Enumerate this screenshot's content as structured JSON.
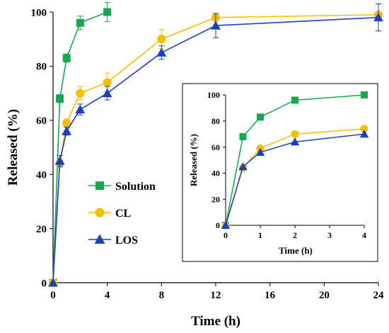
{
  "chart_data": [
    {
      "type": "line",
      "xlabel": "Time  (h)",
      "ylabel": "Released (%)",
      "xlim": [
        0,
        24
      ],
      "ylim": [
        0,
        100
      ],
      "xticks": [
        "0",
        "4",
        "8",
        "12",
        "16",
        "20",
        "24"
      ],
      "yticks": [
        "0",
        "20",
        "40",
        "60",
        "80",
        "100"
      ],
      "grid": false,
      "legend_position": "center-left",
      "series": [
        {
          "name": "Solution",
          "color": "#1aa550",
          "marker": "square",
          "x": [
            0,
            0.5,
            1,
            2,
            4
          ],
          "y": [
            0,
            68,
            83,
            96,
            100
          ],
          "err": [
            0,
            1.5,
            1.5,
            2.5,
            3.5
          ]
        },
        {
          "name": "CL",
          "color": "#f5bf00",
          "marker": "circle",
          "x": [
            0,
            0.5,
            1,
            2,
            4,
            8,
            12,
            24
          ],
          "y": [
            0,
            44,
            59,
            70,
            74,
            90,
            98,
            99
          ],
          "err": [
            0,
            1.5,
            1.5,
            2.5,
            3.5,
            3.5,
            1.5,
            1
          ]
        },
        {
          "name": "LOS",
          "color": "#1f3fbf",
          "marker": "triangle",
          "x": [
            0,
            0.5,
            1,
            2,
            4,
            8,
            12,
            24
          ],
          "y": [
            0,
            45,
            56,
            64,
            70,
            85,
            95,
            98
          ],
          "err": [
            0,
            2,
            1.5,
            2,
            2.5,
            2.5,
            4.5,
            5
          ]
        }
      ]
    },
    {
      "type": "line",
      "xlabel": "Time (h)",
      "ylabel": "Released (%)",
      "xlim": [
        0,
        4
      ],
      "ylim": [
        0,
        100
      ],
      "xticks": [
        "0",
        "1",
        "2",
        "3",
        "4"
      ],
      "yticks": [
        "0",
        "20",
        "40",
        "60",
        "80",
        "100"
      ],
      "grid": false,
      "series": [
        {
          "color": "#1aa550",
          "marker": "square",
          "x": [
            0,
            0.5,
            1,
            2,
            4
          ],
          "y": [
            0,
            68,
            83,
            96,
            100
          ]
        },
        {
          "color": "#f5bf00",
          "marker": "circle",
          "x": [
            0,
            0.5,
            1,
            2,
            4
          ],
          "y": [
            0,
            44,
            59,
            70,
            74
          ]
        },
        {
          "color": "#1f3fbf",
          "marker": "triangle",
          "x": [
            0,
            0.5,
            1,
            2,
            4
          ],
          "y": [
            0,
            45,
            56,
            64,
            70
          ]
        }
      ]
    }
  ]
}
